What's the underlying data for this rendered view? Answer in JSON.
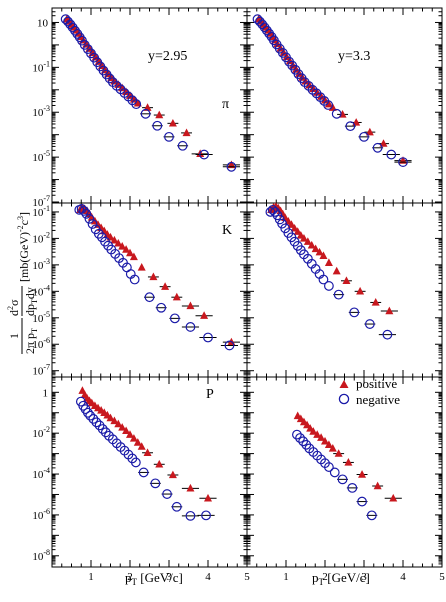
{
  "figure": {
    "ylabel_frac_num": "1",
    "ylabel_frac_den": "2π p",
    "ylabel_den_sub": "T",
    "ylabel_d2": "d",
    "ylabel_d2_sup": "2",
    "ylabel_sigma": "σ",
    "ylabel_dp": "dp",
    "ylabel_dp_sub": "T",
    "ylabel_dy": "dy",
    "ylabel_units": "[mb(GeV)",
    "ylabel_units_sup1": "-2",
    "ylabel_units_c": "c",
    "ylabel_units_sup2": "3",
    "ylabel_units_close": "]",
    "xlabel_left": "p",
    "xlabel_left_sub": "T",
    "xlabel_left_units": " [GeV/c]",
    "xlabel_right": "p",
    "xlabel_right_sub": "T",
    "xlabel_right_units": " [GeV/c]",
    "legend_positive": "positive",
    "legend_negative": "negative",
    "colors": {
      "positive": "#c8181e",
      "negative": "#1a1aa8",
      "axis": "#000000"
    }
  },
  "chart_data": [
    {
      "type": "scatter",
      "panel": "pi-y2.95",
      "log_y": true,
      "xlim": [
        0,
        5
      ],
      "ylim_exp": [
        -7,
        1.6
      ],
      "annotations": [
        "y=2.95",
        "π"
      ],
      "xticklabels": [],
      "yticklabels": [
        "10",
        "10-1",
        "10-3",
        "10-5",
        "10-7"
      ],
      "series": [
        {
          "name": "positive",
          "marker": "triangle",
          "x": [
            0.38,
            0.44,
            0.5,
            0.56,
            0.62,
            0.68,
            0.74,
            0.8,
            0.88,
            0.96,
            1.04,
            1.12,
            1.2,
            1.28,
            1.36,
            1.44,
            1.52,
            1.6,
            1.7,
            1.8,
            1.9,
            2.0,
            2.1,
            2.2,
            2.45,
            2.75,
            3.1,
            3.45,
            3.8,
            4.6
          ],
          "y": [
            14,
            11,
            8,
            6,
            4.4,
            3.2,
            2.3,
            1.6,
            1.05,
            0.68,
            0.44,
            0.28,
            0.18,
            0.115,
            0.075,
            0.05,
            0.034,
            0.024,
            0.017,
            0.012,
            0.008,
            0.0055,
            0.0037,
            0.0025,
            0.0016,
            0.00075,
            0.00032,
            0.00012,
            1.4e-05,
            4.5e-06
          ]
        },
        {
          "name": "negative",
          "marker": "circle",
          "x": [
            0.35,
            0.41,
            0.47,
            0.53,
            0.59,
            0.65,
            0.71,
            0.77,
            0.84,
            0.92,
            1.0,
            1.08,
            1.16,
            1.24,
            1.32,
            1.4,
            1.48,
            1.56,
            1.66,
            1.76,
            1.86,
            1.96,
            2.06,
            2.16,
            2.4,
            2.7,
            3.0,
            3.35,
            3.9,
            4.6
          ],
          "y": [
            14,
            11,
            8.2,
            6,
            4.3,
            3.1,
            2.2,
            1.55,
            1.0,
            0.65,
            0.42,
            0.27,
            0.17,
            0.11,
            0.072,
            0.048,
            0.032,
            0.022,
            0.015,
            0.0105,
            0.0072,
            0.005,
            0.0034,
            0.0023,
            0.00085,
            0.00025,
            8e-05,
            3.2e-05,
            1.3e-05,
            3.7e-06
          ]
        }
      ]
    },
    {
      "type": "scatter",
      "panel": "pi-y3.3",
      "log_y": true,
      "xlim": [
        0,
        5
      ],
      "ylim_exp": [
        -7,
        1.6
      ],
      "annotations": [
        "y=3.3"
      ],
      "xticklabels": [],
      "yticklabels": [],
      "series": [
        {
          "name": "positive",
          "marker": "triangle",
          "x": [
            0.3,
            0.36,
            0.42,
            0.48,
            0.54,
            0.6,
            0.66,
            0.72,
            0.78,
            0.86,
            0.94,
            1.02,
            1.1,
            1.18,
            1.26,
            1.34,
            1.42,
            1.5,
            1.6,
            1.7,
            1.8,
            1.9,
            2.0,
            2.1,
            2.2,
            2.45,
            2.8,
            3.15,
            3.5,
            4.0
          ],
          "y": [
            14,
            11,
            8,
            6,
            4.4,
            3.2,
            2.3,
            1.6,
            1.1,
            0.7,
            0.45,
            0.29,
            0.19,
            0.12,
            0.08,
            0.052,
            0.035,
            0.024,
            0.016,
            0.011,
            0.0075,
            0.005,
            0.0034,
            0.0023,
            0.0016,
            0.0008,
            0.00035,
            0.00013,
            4e-05,
            7e-06
          ]
        },
        {
          "name": "negative",
          "marker": "circle",
          "x": [
            0.27,
            0.33,
            0.39,
            0.45,
            0.51,
            0.57,
            0.63,
            0.69,
            0.76,
            0.84,
            0.92,
            1.0,
            1.08,
            1.16,
            1.24,
            1.32,
            1.4,
            1.48,
            1.58,
            1.68,
            1.78,
            1.88,
            1.98,
            2.08,
            2.3,
            2.65,
            3.0,
            3.35,
            3.7,
            4.0
          ],
          "y": [
            14,
            11,
            8.3,
            6.1,
            4.4,
            3.2,
            2.3,
            1.6,
            1.05,
            0.68,
            0.44,
            0.28,
            0.18,
            0.12,
            0.078,
            0.05,
            0.033,
            0.022,
            0.015,
            0.01,
            0.007,
            0.0047,
            0.0032,
            0.0021,
            0.00085,
            0.00024,
            8e-05,
            2.6e-05,
            1.3e-05,
            6e-06
          ]
        }
      ]
    },
    {
      "type": "scatter",
      "panel": "K-y2.95",
      "log_y": true,
      "xlim": [
        0,
        5
      ],
      "ylim_exp": [
        -7.2,
        -0.7
      ],
      "annotations": [
        "K"
      ],
      "xticklabels": [],
      "yticklabels": [
        "10-1",
        "10-2",
        "10-3",
        "10-4",
        "10-5",
        "10-6",
        "10-7"
      ],
      "series": [
        {
          "name": "positive",
          "marker": "triangle",
          "x": [
            0.72,
            0.78,
            0.84,
            0.9,
            0.96,
            1.02,
            1.1,
            1.18,
            1.26,
            1.34,
            1.42,
            1.5,
            1.6,
            1.7,
            1.8,
            1.9,
            2.0,
            2.1,
            2.3,
            2.6,
            2.9,
            3.2,
            3.55,
            3.9,
            4.6
          ],
          "y": [
            0.12,
            0.14,
            0.13,
            0.11,
            0.085,
            0.062,
            0.045,
            0.033,
            0.025,
            0.019,
            0.014,
            0.011,
            0.0085,
            0.0065,
            0.005,
            0.0038,
            0.0028,
            0.002,
            0.0008,
            0.00035,
            0.00015,
            6e-05,
            2.8e-05,
            1.2e-05,
            1.2e-06
          ]
        },
        {
          "name": "negative",
          "marker": "circle",
          "x": [
            0.7,
            0.76,
            0.82,
            0.88,
            0.96,
            1.04,
            1.12,
            1.2,
            1.28,
            1.36,
            1.44,
            1.52,
            1.62,
            1.72,
            1.82,
            1.92,
            2.02,
            2.12,
            2.5,
            2.8,
            3.15,
            3.55,
            4.0,
            4.55
          ],
          "y": [
            0.12,
            0.13,
            0.11,
            0.085,
            0.055,
            0.035,
            0.022,
            0.015,
            0.011,
            0.0075,
            0.0053,
            0.0038,
            0.0026,
            0.0018,
            0.0012,
            0.0008,
            0.00045,
            0.00028,
            6e-05,
            2.4e-05,
            9.5e-06,
            4.5e-06,
            1.8e-06,
            9e-07
          ]
        }
      ]
    },
    {
      "type": "scatter",
      "panel": "K-y3.3",
      "log_y": true,
      "xlim": [
        0,
        5
      ],
      "ylim_exp": [
        -7.2,
        -0.7
      ],
      "annotations": [],
      "xticklabels": [],
      "yticklabels": [],
      "series": [
        {
          "name": "positive",
          "marker": "triangle",
          "x": [
            0.62,
            0.68,
            0.74,
            0.8,
            0.86,
            0.92,
            0.98,
            1.06,
            1.14,
            1.22,
            1.3,
            1.38,
            1.46,
            1.56,
            1.66,
            1.76,
            1.86,
            1.96,
            2.1,
            2.3,
            2.55,
            2.9,
            3.3,
            3.65
          ],
          "y": [
            0.12,
            0.15,
            0.16,
            0.14,
            0.11,
            0.082,
            0.06,
            0.044,
            0.033,
            0.024,
            0.018,
            0.013,
            0.01,
            0.0075,
            0.0055,
            0.004,
            0.003,
            0.0022,
            0.0012,
            0.00058,
            0.00025,
            0.0001,
            3.8e-05,
            1.8e-05
          ]
        },
        {
          "name": "negative",
          "marker": "circle",
          "x": [
            0.6,
            0.66,
            0.72,
            0.78,
            0.84,
            0.9,
            0.98,
            1.06,
            1.14,
            1.22,
            1.3,
            1.38,
            1.46,
            1.56,
            1.66,
            1.76,
            1.86,
            1.96,
            2.1,
            2.35,
            2.75,
            3.15,
            3.6
          ],
          "y": [
            0.1,
            0.12,
            0.1,
            0.075,
            0.052,
            0.036,
            0.024,
            0.016,
            0.011,
            0.0075,
            0.0052,
            0.0036,
            0.0025,
            0.0017,
            0.0011,
            0.0007,
            0.00045,
            0.00028,
            0.00016,
            7.5e-05,
            1.6e-05,
            5.8e-06,
            2.3e-06
          ]
        }
      ]
    },
    {
      "type": "scatter",
      "panel": "P-y2.95",
      "log_y": true,
      "xlim": [
        0,
        5
      ],
      "ylim_exp": [
        -8.5,
        0.7
      ],
      "annotations": [
        "P"
      ],
      "xticklabels": [
        "1",
        "2",
        "3",
        "4",
        "5"
      ],
      "yticklabels": [
        "1",
        "10-2",
        "10-4",
        "10-6",
        "10-8"
      ],
      "series": [
        {
          "name": "positive",
          "marker": "triangle",
          "x": [
            0.78,
            0.84,
            0.9,
            0.96,
            1.02,
            1.1,
            1.18,
            1.26,
            1.34,
            1.42,
            1.5,
            1.6,
            1.7,
            1.8,
            1.9,
            2.0,
            2.1,
            2.2,
            2.3,
            2.45,
            2.75,
            3.1,
            3.55,
            4.0
          ],
          "y": [
            1.2,
            0.75,
            0.5,
            0.38,
            0.3,
            0.22,
            0.17,
            0.13,
            0.1,
            0.075,
            0.055,
            0.04,
            0.028,
            0.019,
            0.013,
            0.0085,
            0.0055,
            0.0035,
            0.0022,
            0.0011,
            0.0003,
            9e-05,
            2e-05,
            6.5e-06
          ]
        },
        {
          "name": "negative",
          "marker": "circle",
          "x": [
            0.74,
            0.8,
            0.86,
            0.92,
            0.98,
            1.06,
            1.14,
            1.22,
            1.3,
            1.38,
            1.46,
            1.56,
            1.66,
            1.76,
            1.86,
            1.96,
            2.06,
            2.15,
            2.35,
            2.65,
            2.95,
            3.2,
            3.55,
            3.95
          ],
          "y": [
            0.35,
            0.22,
            0.15,
            0.1,
            0.072,
            0.05,
            0.034,
            0.024,
            0.016,
            0.011,
            0.0075,
            0.005,
            0.0032,
            0.0021,
            0.0014,
            0.0009,
            0.00058,
            0.00037,
            0.00012,
            3.5e-05,
            1.05e-05,
            2.5e-06,
            9e-07,
            9.5e-07
          ]
        }
      ]
    },
    {
      "type": "scatter",
      "panel": "P-y3.3",
      "log_y": true,
      "xlim": [
        0,
        5
      ],
      "ylim_exp": [
        -8.5,
        0.7
      ],
      "annotations": [],
      "xticklabels": [
        "1",
        "2",
        "3",
        "4",
        "5"
      ],
      "yticklabels": [],
      "series": [
        {
          "name": "positive",
          "marker": "triangle",
          "x": [
            1.3,
            1.38,
            1.46,
            1.54,
            1.62,
            1.7,
            1.8,
            1.9,
            2.0,
            2.1,
            2.2,
            2.35,
            2.6,
            2.95,
            3.35,
            3.75
          ],
          "y": [
            0.07,
            0.05,
            0.035,
            0.025,
            0.017,
            0.012,
            0.0085,
            0.006,
            0.004,
            0.0027,
            0.0018,
            0.001,
            0.00037,
            9.5e-05,
            2.6e-05,
            6.5e-06
          ]
        },
        {
          "name": "negative",
          "marker": "circle",
          "x": [
            1.28,
            1.36,
            1.44,
            1.52,
            1.6,
            1.7,
            1.8,
            1.9,
            2.0,
            2.1,
            2.25,
            2.45,
            2.7,
            2.95,
            3.2
          ],
          "y": [
            0.0085,
            0.0058,
            0.004,
            0.0027,
            0.0018,
            0.0012,
            0.0008,
            0.00052,
            0.00034,
            0.00022,
            0.00012,
            5.5e-05,
            2.1e-05,
            4.5e-06,
            9.5e-07
          ]
        }
      ]
    }
  ]
}
